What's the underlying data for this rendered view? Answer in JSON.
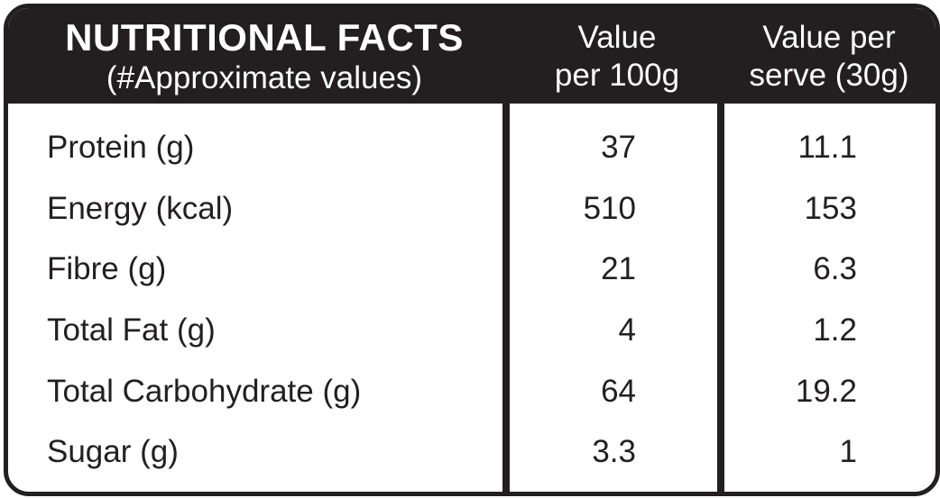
{
  "header": {
    "title": "NUTRITIONAL FACTS",
    "subtitle": "(#Approximate values)",
    "col1_line1": "Value",
    "col1_line2": "per 100g",
    "col2_line1": "Value per",
    "col2_line2": "serve (30g)"
  },
  "rows": [
    {
      "label": "Protein (g)",
      "per100g": "37",
      "perServe": "11.1"
    },
    {
      "label": "Energy (kcal)",
      "per100g": "510",
      "perServe": "153"
    },
    {
      "label": "Fibre (g)",
      "per100g": "21",
      "perServe": "6.3"
    },
    {
      "label": "Total Fat (g)",
      "per100g": "4",
      "perServe": "1.2"
    },
    {
      "label": "Total Carbohydrate (g)",
      "per100g": "64",
      "perServe": "19.2"
    },
    {
      "label": "Sugar (g)",
      "per100g": "3.3",
      "perServe": "1"
    }
  ],
  "colors": {
    "ink": "#231f20",
    "background": "#ffffff"
  }
}
